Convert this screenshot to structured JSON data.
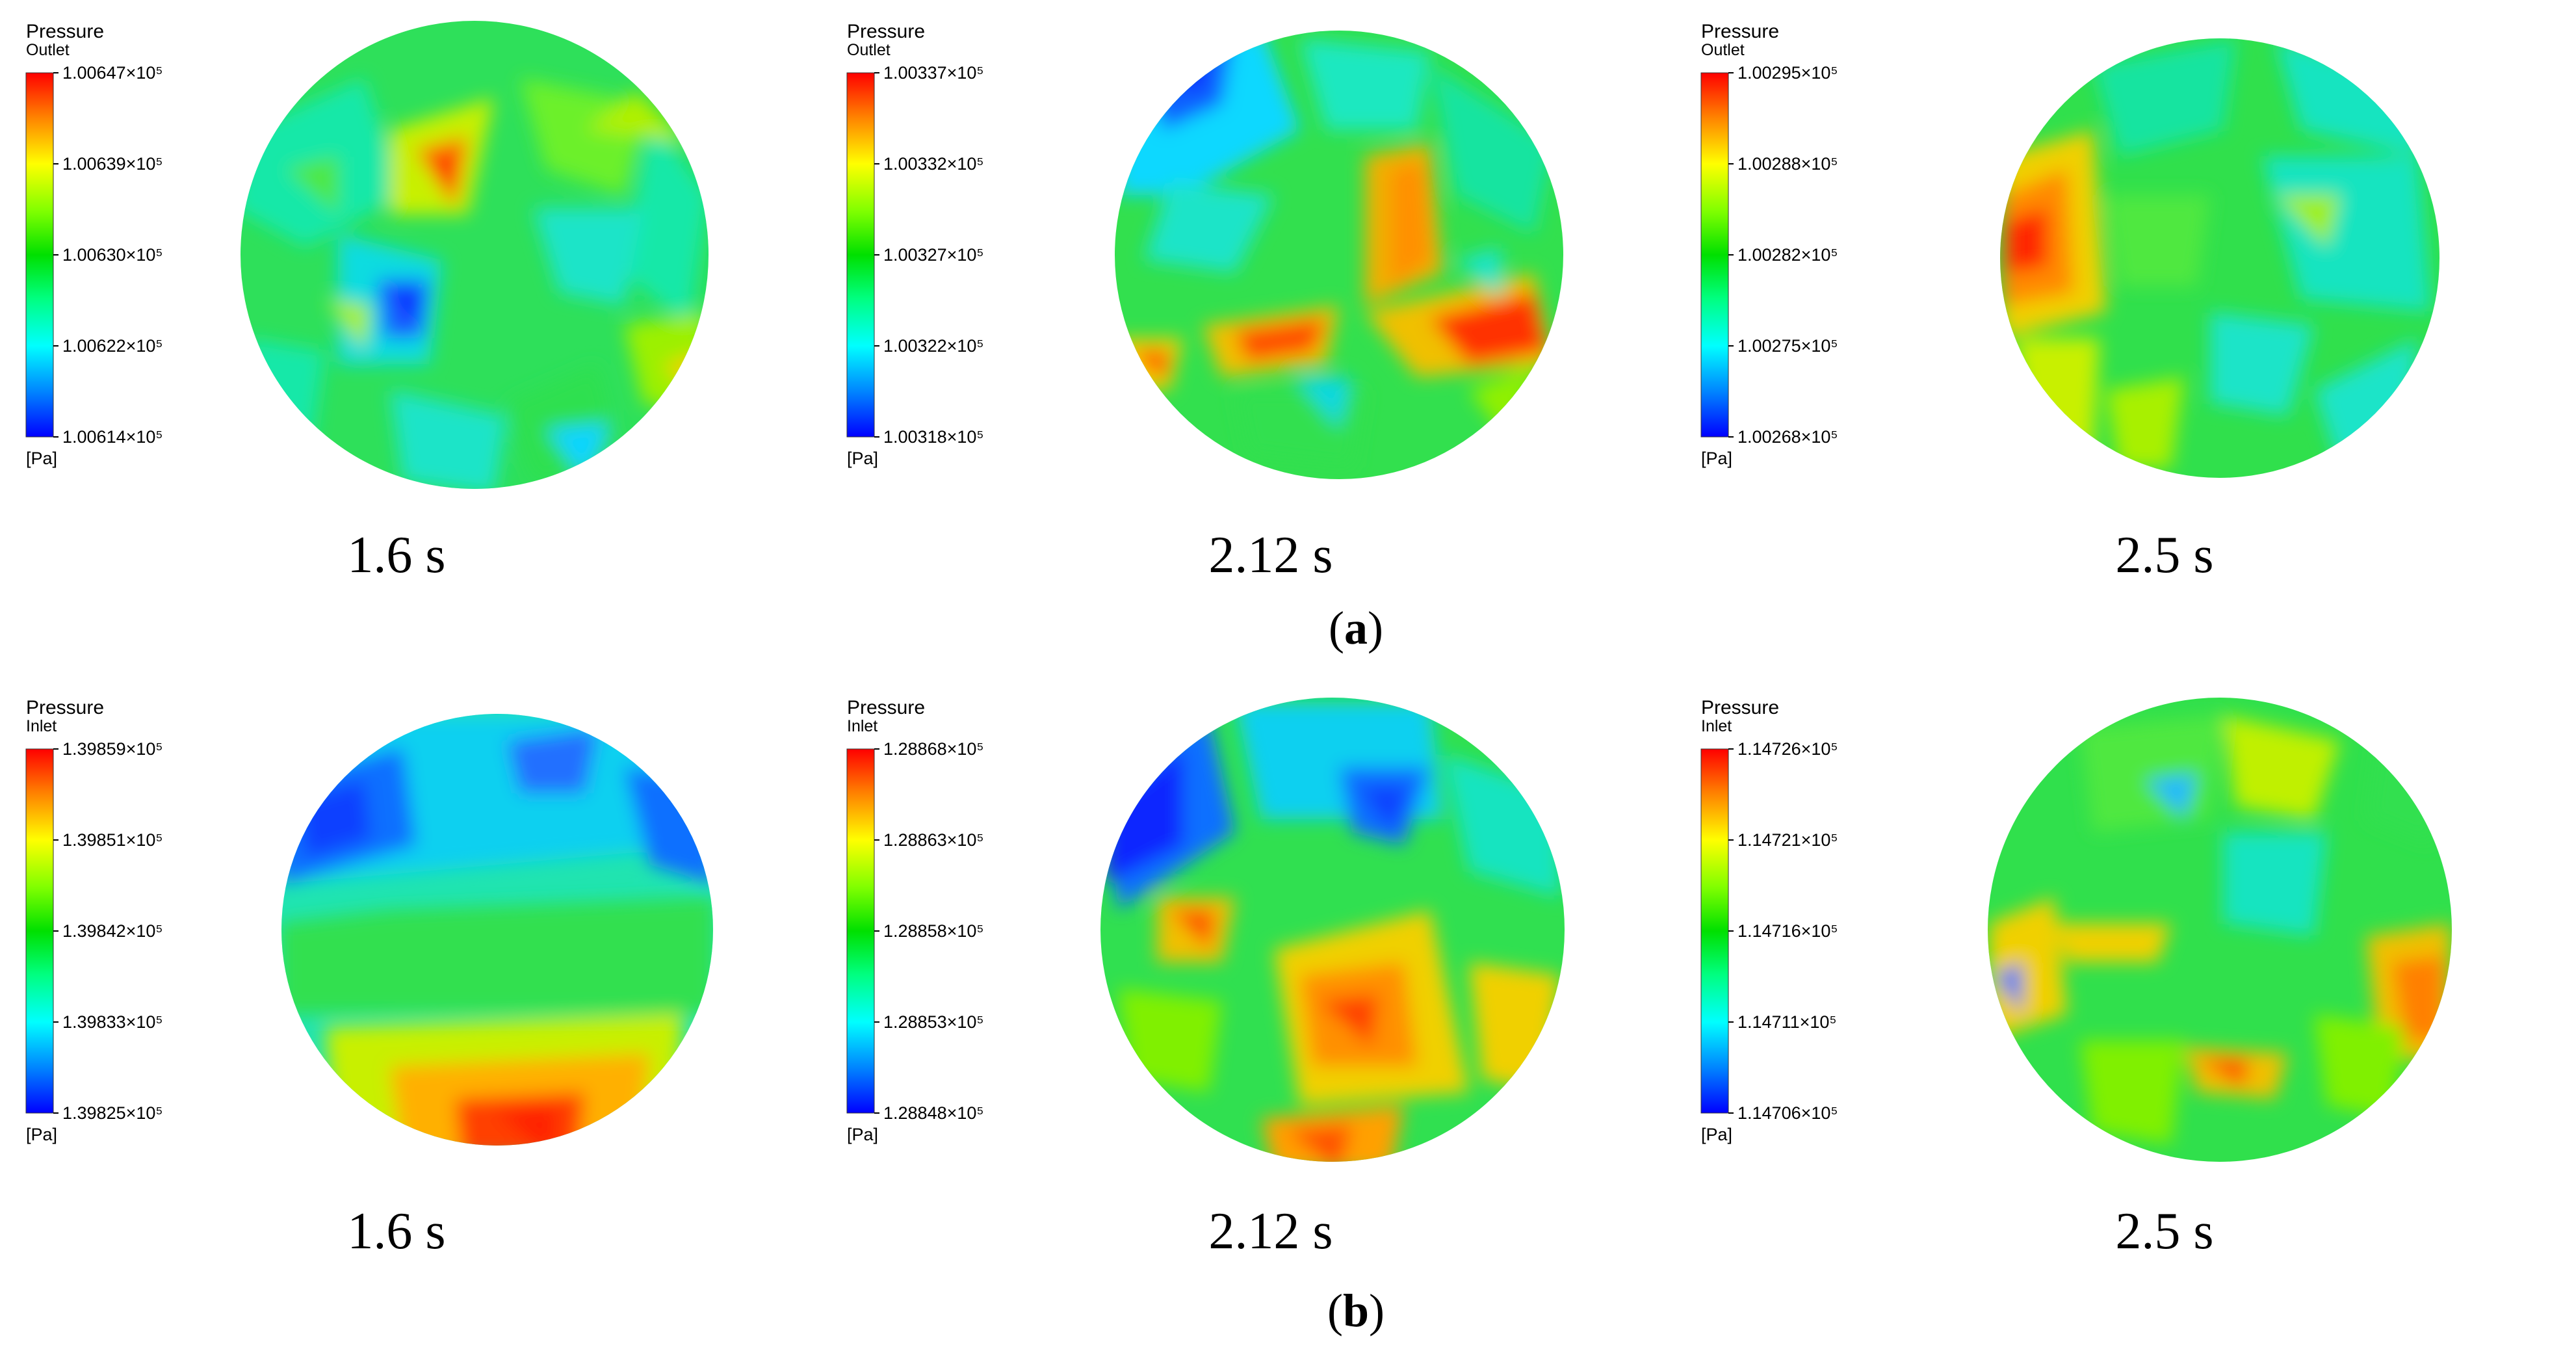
{
  "rows": [
    {
      "label": "a",
      "panels": [
        {
          "title": "Pressure",
          "subtitle": "Outlet",
          "unit": "[Pa]",
          "ticks": [
            "1.00647×10⁵",
            "1.00639×10⁵",
            "1.00630×10⁵",
            "1.00622×10⁵",
            "1.00614×10⁵"
          ],
          "time": "1.6 s"
        },
        {
          "title": "Pressure",
          "subtitle": "Outlet",
          "unit": "[Pa]",
          "ticks": [
            "1.00337×10⁵",
            "1.00332×10⁵",
            "1.00327×10⁵",
            "1.00322×10⁵",
            "1.00318×10⁵"
          ],
          "time": "2.12 s"
        },
        {
          "title": "Pressure",
          "subtitle": "Outlet",
          "unit": "[Pa]",
          "ticks": [
            "1.00295×10⁵",
            "1.00288×10⁵",
            "1.00282×10⁵",
            "1.00275×10⁵",
            "1.00268×10⁵"
          ],
          "time": "2.5 s"
        }
      ]
    },
    {
      "label": "b",
      "panels": [
        {
          "title": "Pressure",
          "subtitle": "Inlet",
          "unit": "[Pa]",
          "ticks": [
            "1.39859×10⁵",
            "1.39851×10⁵",
            "1.39842×10⁵",
            "1.39833×10⁵",
            "1.39825×10⁵"
          ],
          "time": "1.6 s"
        },
        {
          "title": "Pressure",
          "subtitle": "Inlet",
          "unit": "[Pa]",
          "ticks": [
            "1.28868×10⁵",
            "1.28863×10⁵",
            "1.28858×10⁵",
            "1.28853×10⁵",
            "1.28848×10⁵"
          ],
          "time": "2.12 s"
        },
        {
          "title": "Pressure",
          "subtitle": "Inlet",
          "unit": "[Pa]",
          "ticks": [
            "1.14726×10⁵",
            "1.14721×10⁵",
            "1.14716×10⁵",
            "1.14711×10⁵",
            "1.14706×10⁵"
          ],
          "time": "2.5 s"
        }
      ]
    }
  ],
  "colors": {
    "scale": [
      "#ff0000",
      "#ff8000",
      "#ffff00",
      "#80ff00",
      "#00e000",
      "#00ff80",
      "#00ffff",
      "#0080ff",
      "#0000ff"
    ],
    "background": "#ffffff"
  }
}
